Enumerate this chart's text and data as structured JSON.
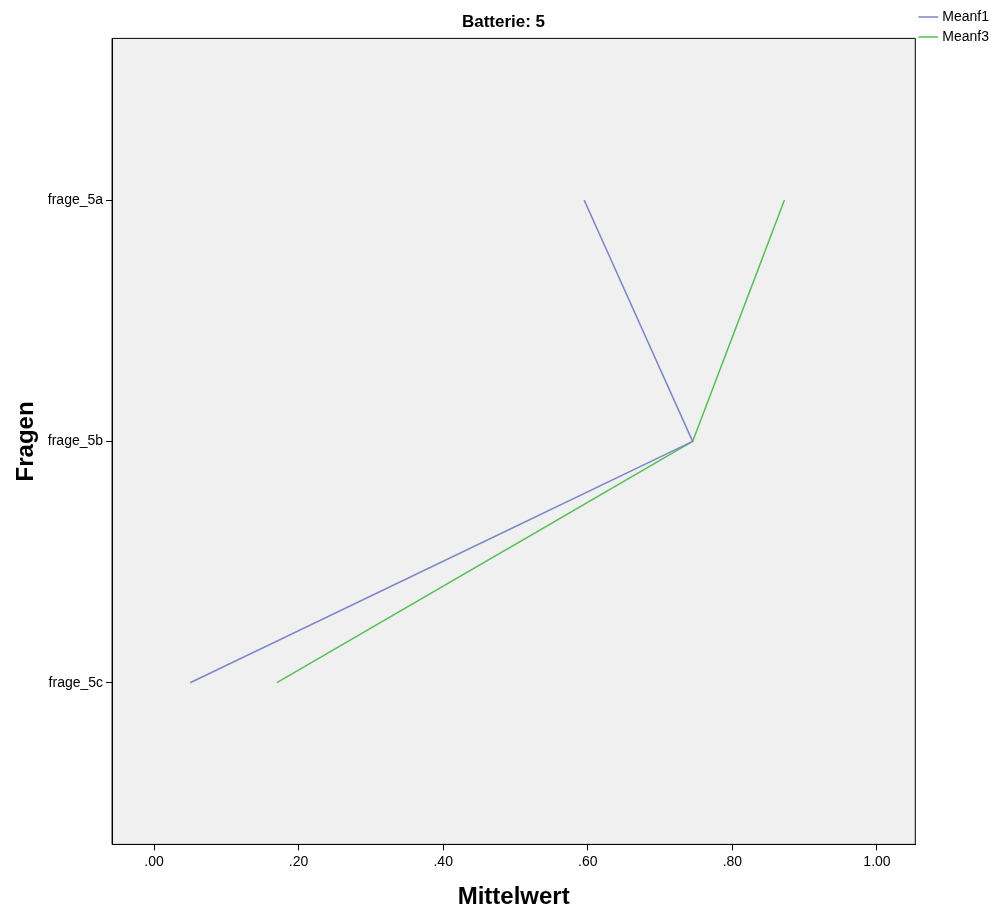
{
  "chart_data": {
    "type": "line",
    "title": "Batterie: 5",
    "xlabel": "Mittelwert",
    "ylabel": "Fragen",
    "orientation": "horizontal",
    "categories": [
      "frage_5a",
      "frage_5b",
      "frage_5c"
    ],
    "series": [
      {
        "name": "Meanf1",
        "color": "#7b86c8",
        "values": [
          0.595,
          0.745,
          0.05
        ]
      },
      {
        "name": "Meanf3",
        "color": "#55c055",
        "values": [
          0.872,
          0.745,
          0.17
        ]
      }
    ],
    "xlim": [
      -0.058,
      1.053
    ],
    "xticks": [
      {
        "value": 0,
        "label": ".00"
      },
      {
        "value": 0.2,
        "label": ".20"
      },
      {
        "value": 0.4,
        "label": ".40"
      },
      {
        "value": 0.6,
        "label": ".60"
      },
      {
        "value": 0.8,
        "label": ".80"
      },
      {
        "value": 1,
        "label": "1.00"
      }
    ],
    "grid": false,
    "legend": "top right",
    "marker": "none",
    "line_style": "solid"
  }
}
